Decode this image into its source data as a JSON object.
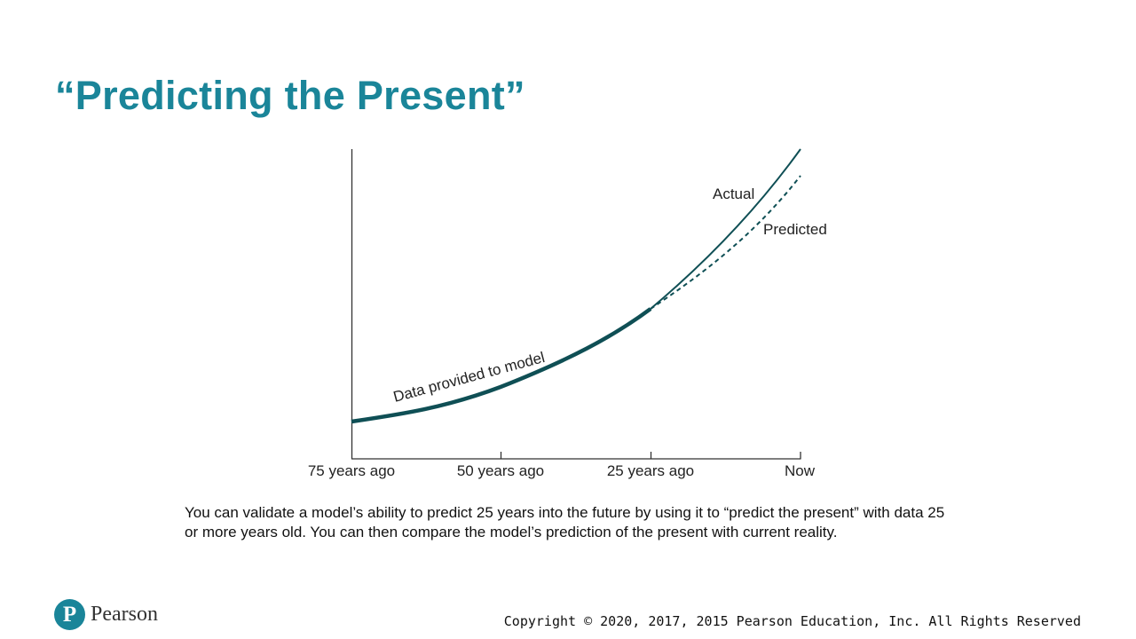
{
  "slide": {
    "title": "“Predicting the Present”",
    "caption": "You can validate a model’s ability to predict 25 years into the future by using it to “predict the present” with data 25 or more years old. You can then compare the model’s prediction of the present with current reality.",
    "copyright": "Copyright © 2020, 2017, 2015 Pearson Education, Inc. All Rights Reserved",
    "logo_text": "Pearson"
  },
  "diagram": {
    "x_ticks": [
      "75 years ago",
      "50 years ago",
      "25 years ago",
      "Now"
    ],
    "labels": {
      "data": "Data provided to model",
      "actual": "Actual",
      "predicted": "Predicted"
    },
    "colors": {
      "curve": "#0f4f55",
      "title": "#1a8599"
    }
  }
}
